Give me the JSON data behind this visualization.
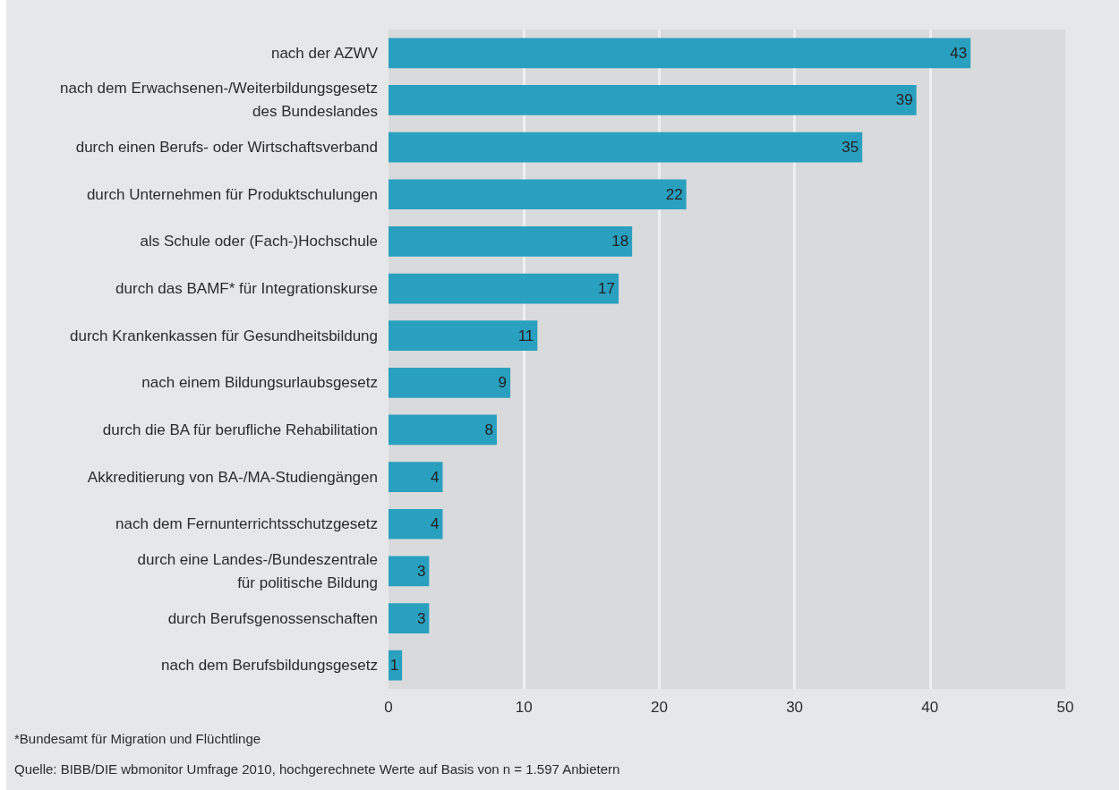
{
  "chart_data": {
    "type": "bar",
    "orientation": "horizontal",
    "categories": [
      "nach der AZWV",
      "nach dem Erwachsenen-/Weiterbildungsgesetz\ndes Bundeslandes",
      "durch einen Berufs- oder Wirtschaftsverband",
      "durch Unternehmen für Produktschulungen",
      "als Schule oder (Fach-)Hochschule",
      "durch das BAMF* für Integrationskurse",
      "durch Krankenkassen für Gesundheitsbildung",
      "nach einem Bildungsurlaubsgesetz",
      "durch die BA für berufliche Rehabilitation",
      "Akkreditierung von BA-/MA-Studiengängen",
      "nach dem Fernunterrichtsschutzgesetz",
      "durch eine Landes-/Bundeszentrale\nfür politische Bildung",
      "durch Berufsgenossenschaften",
      "nach dem Berufsbildungsgesetz"
    ],
    "values": [
      43,
      39,
      35,
      22,
      18,
      17,
      11,
      9,
      8,
      4,
      4,
      3,
      3,
      1
    ],
    "color": "#29a0bf",
    "xlim": [
      0,
      50
    ],
    "xticks": [
      0,
      10,
      20,
      30,
      40,
      50
    ],
    "grid": "x",
    "data_labels": true,
    "annotations": [
      "*Bundesamt für Migration und Flüchtlinge",
      "Quelle: BIBB/DIE wbmonitor Umfrage 2010, hochgerechnete Werte auf Basis von n = 1.597 Anbietern"
    ]
  }
}
